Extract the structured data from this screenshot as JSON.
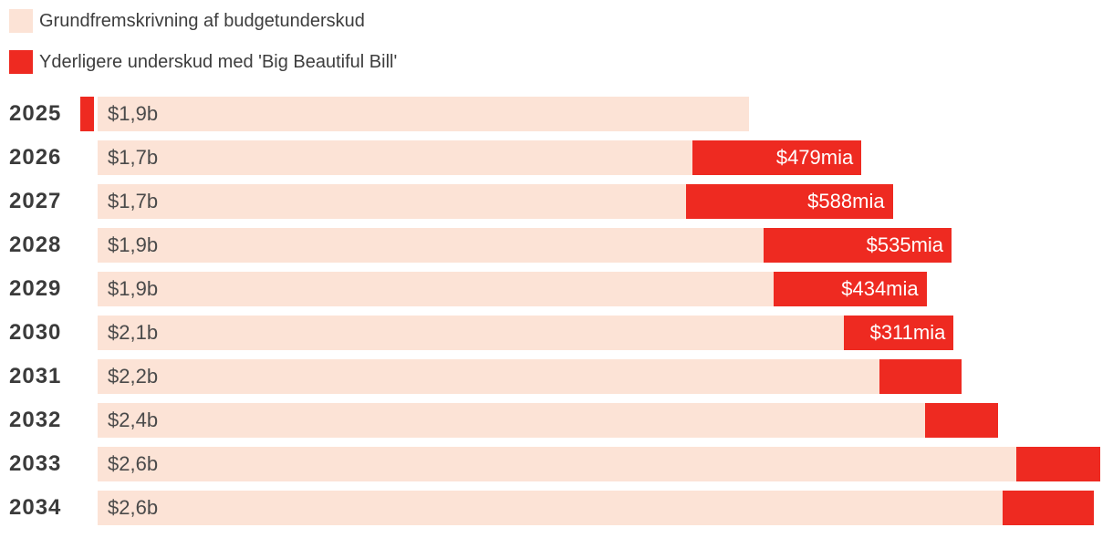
{
  "legend": {
    "items": [
      {
        "label": "Grundfremskrivning af budgetunderskud",
        "color": "#fce3d6"
      },
      {
        "label": "Yderligere underskud med 'Big Beautiful Bill'",
        "color": "#ee2a21"
      }
    ]
  },
  "colors": {
    "background": "#ffffff",
    "baseline_bar": "#fce3d6",
    "additional_bar": "#ee2a21",
    "year_text": "#3b3b3b",
    "baseline_label_text": "#4a4a4a",
    "additional_label_text": "#ffffff",
    "legend_text": "#3d3d3d"
  },
  "chart_data": {
    "type": "bar",
    "orientation": "horizontal",
    "stacked": true,
    "grid": false,
    "axes_shown": false,
    "legend_position": "top-left",
    "categories": [
      "2025",
      "2026",
      "2027",
      "2028",
      "2029",
      "2030",
      "2031",
      "2032",
      "2033",
      "2034"
    ],
    "series": [
      {
        "name": "Grundfremskrivning af budgetunderskud",
        "unit": "USD trillions (Danish 'b' = billioner)",
        "values_trillions": [
          1.9,
          1.7,
          1.7,
          1.9,
          1.9,
          2.1,
          2.2,
          2.4,
          2.6,
          2.6
        ],
        "values_est_billions": [
          1850,
          1690,
          1670,
          1890,
          1920,
          2120,
          2220,
          2350,
          2610,
          2570
        ],
        "labels": [
          "$1,9b",
          "$1,7b",
          "$1,7b",
          "$1,9b",
          "$1,9b",
          "$2,1b",
          "$2,2b",
          "$2,4b",
          "$2,6b",
          "$2,6b"
        ]
      },
      {
        "name": "Yderligere underskud med 'Big Beautiful Bill'",
        "unit": "USD billions (mia)",
        "values_est_billions": [
          -40,
          479,
          588,
          535,
          434,
          311,
          233,
          207,
          236,
          259
        ],
        "labels": [
          "",
          "$479mia",
          "$588mia",
          "$535mia",
          "$434mia",
          "$311mia",
          "",
          "",
          "",
          ""
        ],
        "note": "2025 value is negative and drawn as a small bar left of the baseline bar; 2031-2034 bars carry no text labels"
      }
    ]
  }
}
